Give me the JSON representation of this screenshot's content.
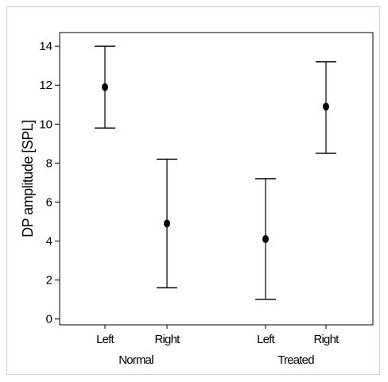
{
  "chart_data": {
    "type": "scatter",
    "subtype": "error-bar",
    "ylabel": "DP amplitude [SPL]",
    "xlabel": "",
    "ylim": [
      -0.3,
      14.7
    ],
    "yticks": [
      0,
      2,
      4,
      6,
      8,
      10,
      12,
      14
    ],
    "groups": [
      "Normal",
      "Treated"
    ],
    "points": [
      {
        "group": "Normal",
        "label": "Left",
        "mean": 11.9,
        "lower": 9.8,
        "upper": 14.0
      },
      {
        "group": "Normal",
        "label": "Right",
        "mean": 4.9,
        "lower": 1.6,
        "upper": 8.2
      },
      {
        "group": "Treated",
        "label": "Left",
        "mean": 4.1,
        "lower": 1.0,
        "upper": 7.2
      },
      {
        "group": "Treated",
        "label": "Right",
        "mean": 10.9,
        "lower": 8.5,
        "upper": 13.2
      }
    ],
    "colors": {
      "marks": "#000000",
      "axis": "#000000",
      "frame_border": "#cfcfcf"
    },
    "grid": false,
    "legend": "none"
  }
}
